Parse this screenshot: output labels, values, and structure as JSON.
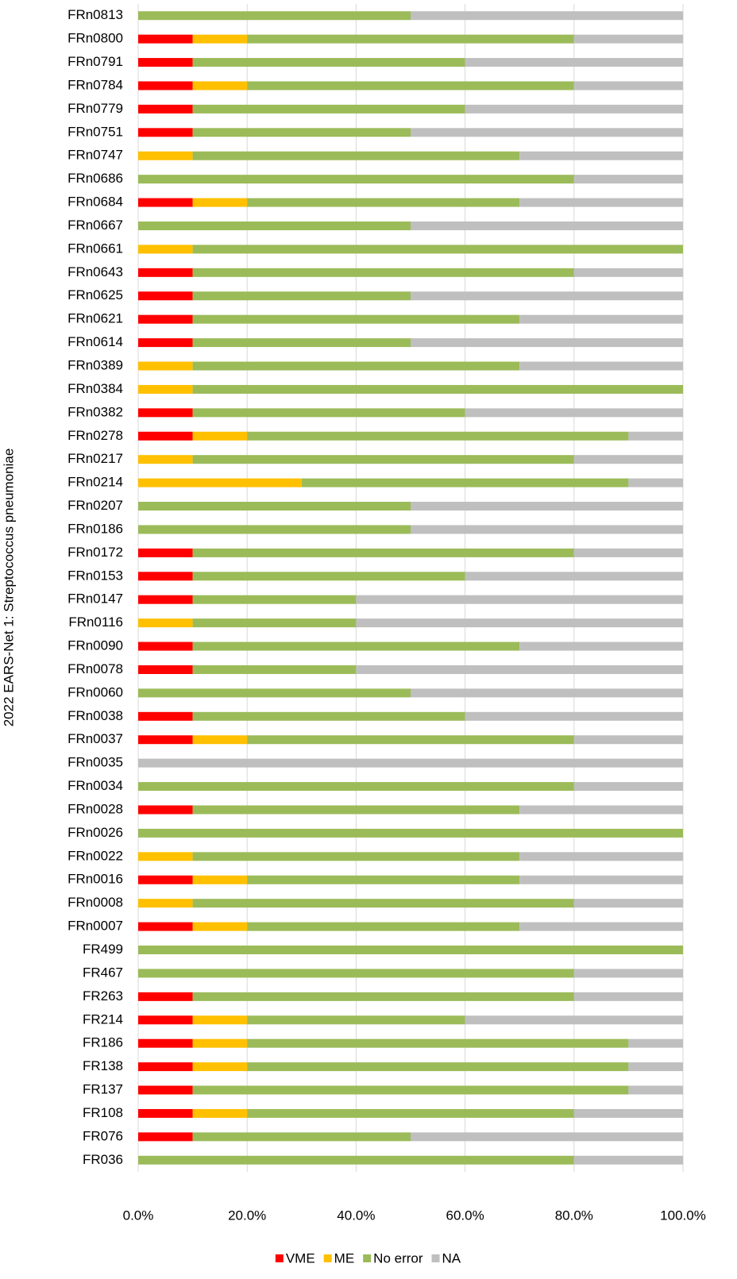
{
  "chart_data": {
    "type": "stacked_barh",
    "y_label": "2022 EARS-Net 1: Streptococcus pneumoniae",
    "categories": [
      "FRn0813",
      "FRn0800",
      "FRn0791",
      "FRn0784",
      "FRn0779",
      "FRn0751",
      "FRn0747",
      "FRn0686",
      "FRn0684",
      "FRn0667",
      "FRn0661",
      "FRn0643",
      "FRn0625",
      "FRn0621",
      "FRn0614",
      "FRn0389",
      "FRn0384",
      "FRn0382",
      "FRn0278",
      "FRn0217",
      "FRn0214",
      "FRn0207",
      "FRn0186",
      "FRn0172",
      "FRn0153",
      "FRn0147",
      "FRn0116",
      "FRn0090",
      "FRn0078",
      "FRn0060",
      "FRn0038",
      "FRn0037",
      "FRn0035",
      "FRn0034",
      "FRn0028",
      "FRn0026",
      "FRn0022",
      "FRn0016",
      "FRn0008",
      "FRn0007",
      "FR499",
      "FR467",
      "FR263",
      "FR214",
      "FR186",
      "FR138",
      "FR137",
      "FR108",
      "FR076",
      "FR036"
    ],
    "series": [
      {
        "name": "VME",
        "color": "#ff0000",
        "values": [
          0,
          10,
          10,
          10,
          10,
          10,
          0,
          0,
          10,
          0,
          0,
          10,
          10,
          10,
          10,
          0,
          0,
          10,
          10,
          0,
          0,
          0,
          0,
          10,
          10,
          10,
          0,
          10,
          10,
          0,
          10,
          10,
          0,
          0,
          10,
          0,
          0,
          10,
          0,
          10,
          0,
          0,
          10,
          10,
          10,
          10,
          10,
          10,
          10,
          0
        ]
      },
      {
        "name": "ME",
        "color": "#ffc000",
        "values": [
          0,
          10,
          0,
          10,
          0,
          0,
          10,
          0,
          10,
          0,
          10,
          0,
          0,
          0,
          0,
          10,
          10,
          0,
          10,
          10,
          30,
          0,
          0,
          0,
          0,
          0,
          10,
          0,
          0,
          0,
          0,
          10,
          0,
          0,
          0,
          0,
          10,
          10,
          10,
          10,
          0,
          0,
          0,
          10,
          10,
          10,
          0,
          10,
          0,
          0
        ]
      },
      {
        "name": "No error",
        "color": "#9bbb59",
        "values": [
          50,
          60,
          50,
          60,
          50,
          40,
          60,
          80,
          50,
          50,
          90,
          70,
          40,
          60,
          40,
          60,
          90,
          50,
          70,
          70,
          60,
          50,
          50,
          70,
          50,
          30,
          30,
          60,
          30,
          50,
          50,
          60,
          0,
          80,
          60,
          100,
          60,
          50,
          70,
          50,
          100,
          80,
          70,
          40,
          70,
          70,
          80,
          60,
          40,
          80
        ]
      },
      {
        "name": "NA",
        "color": "#bfbfbf",
        "values": [
          50,
          20,
          40,
          20,
          40,
          50,
          30,
          20,
          30,
          50,
          0,
          20,
          50,
          30,
          50,
          30,
          0,
          40,
          10,
          20,
          10,
          50,
          50,
          20,
          40,
          60,
          60,
          30,
          60,
          50,
          40,
          20,
          100,
          20,
          30,
          0,
          30,
          30,
          20,
          30,
          0,
          20,
          20,
          40,
          10,
          10,
          10,
          20,
          50,
          20
        ]
      }
    ],
    "xlim": [
      0,
      100
    ],
    "xticks": [
      {
        "value": 0,
        "label": "0.0%"
      },
      {
        "value": 20,
        "label": "20.0%"
      },
      {
        "value": 40,
        "label": "40.0%"
      },
      {
        "value": 60,
        "label": "60.0%"
      },
      {
        "value": 80,
        "label": "80.0%"
      },
      {
        "value": 100,
        "label": "100.0%"
      }
    ],
    "grid": true,
    "legend": "bottom"
  }
}
